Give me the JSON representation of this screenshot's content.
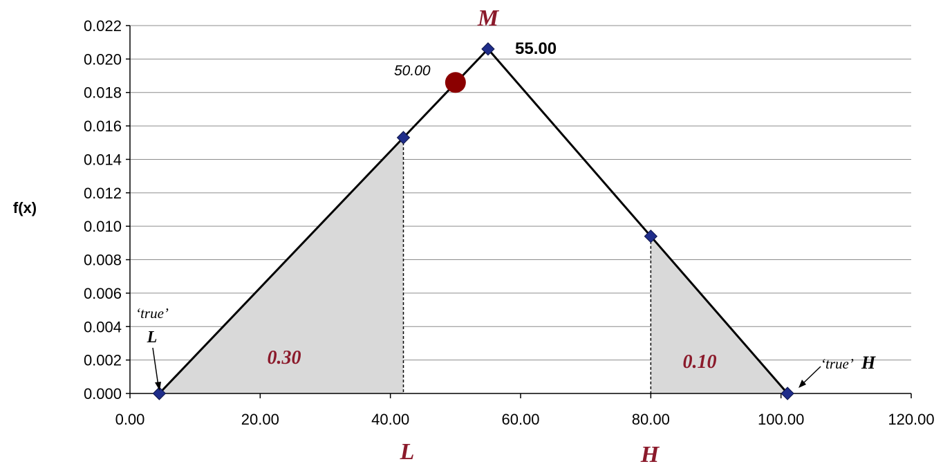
{
  "chart_data": {
    "type": "line",
    "title": "",
    "xlabel": "",
    "ylabel": "f(x)",
    "xlim": [
      0,
      120
    ],
    "ylim": [
      0,
      0.022
    ],
    "x_ticks": [
      "0.00",
      "20.00",
      "40.00",
      "60.00",
      "80.00",
      "100.00",
      "120.00"
    ],
    "y_ticks": [
      "0.000",
      "0.002",
      "0.004",
      "0.006",
      "0.008",
      "0.010",
      "0.012",
      "0.014",
      "0.016",
      "0.018",
      "0.020",
      "0.022"
    ],
    "grid": true,
    "series": [
      {
        "points": [
          {
            "x": 4.5,
            "y": 0.0
          },
          {
            "x": 42.0,
            "y": 0.0153
          },
          {
            "x": 55.0,
            "y": 0.0206
          },
          {
            "x": 80.0,
            "y": 0.0094
          },
          {
            "x": 101.0,
            "y": 0.0
          }
        ]
      }
    ],
    "mean_marker": {
      "x": 50.0,
      "y": 0.0186,
      "label": "50.00",
      "color": "#8b0000"
    },
    "mode_label": "55.00",
    "shaded_regions": [
      {
        "x_from": 4.5,
        "x_to": 42.0,
        "label": "0.30"
      },
      {
        "x_from": 80.0,
        "x_to": 101.0,
        "label": "0.10"
      }
    ],
    "annotations": {
      "M": "M",
      "L": "L",
      "H": "H",
      "true_L_quote": "‘true’",
      "true_L_letter": "L",
      "true_H_quote": "‘true’",
      "true_H_letter": "H"
    },
    "colors": {
      "line": "#000000",
      "marker": "#1f2d8a",
      "shade": "#d9d9d9",
      "accent": "#8b1a2b",
      "grid": "#8c8c8c"
    }
  }
}
